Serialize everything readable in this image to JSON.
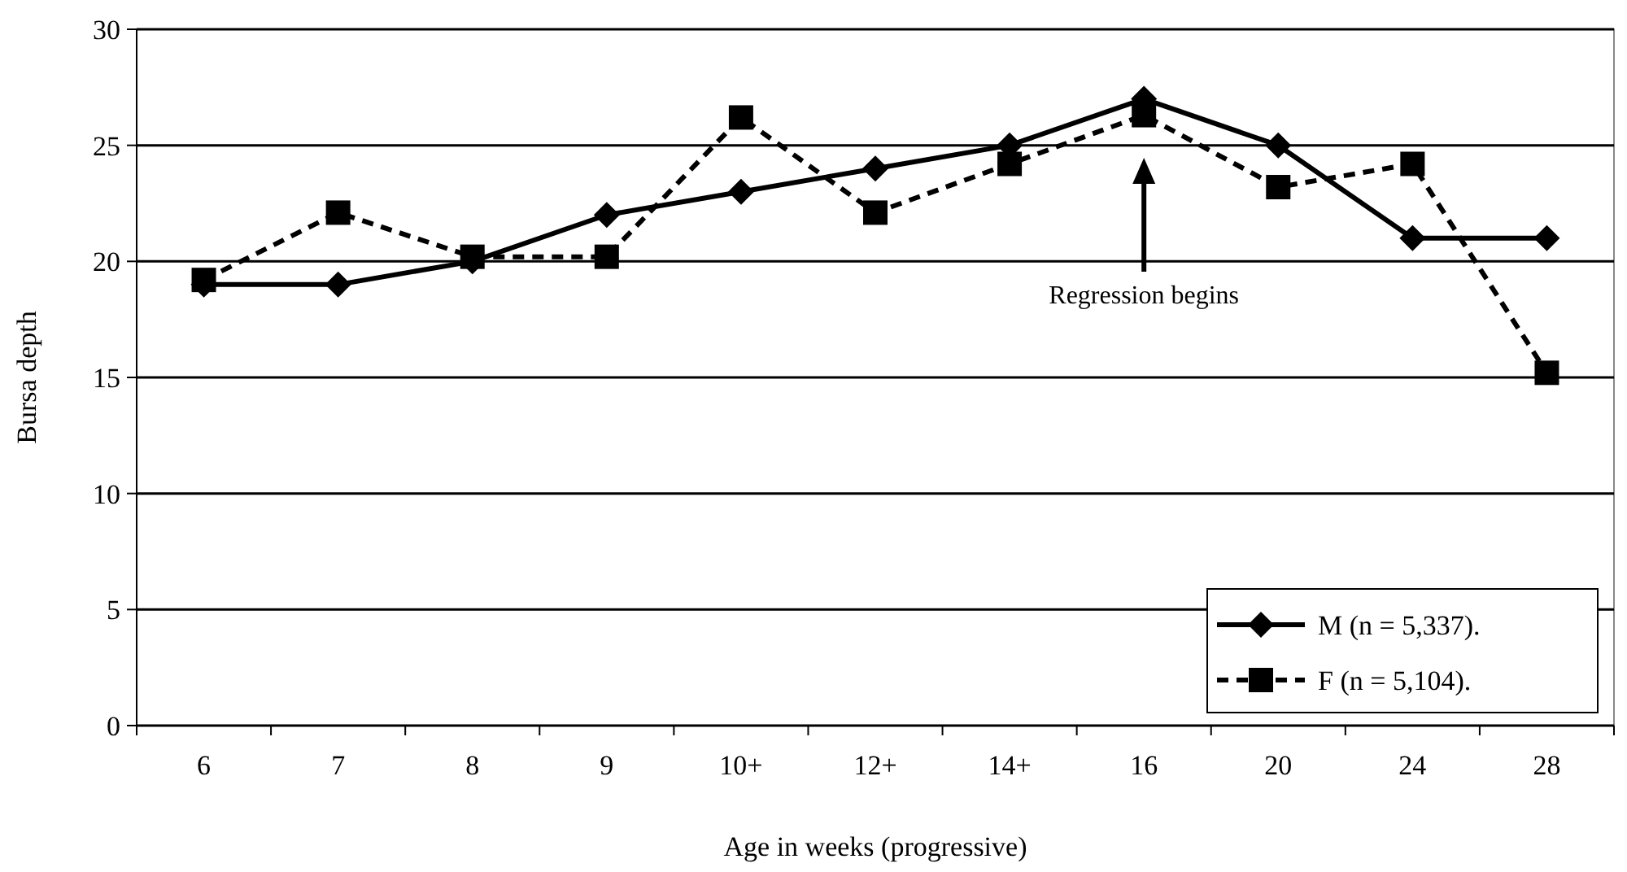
{
  "chart_data": {
    "type": "line",
    "xlabel": "Age in weeks (progressive)",
    "ylabel": "Bursa depth",
    "categories": [
      "6",
      "7",
      "8",
      "9",
      "10+",
      "12+",
      "14+",
      "16",
      "20",
      "24",
      "28"
    ],
    "series": [
      {
        "name": "M (n = 5,337).",
        "color": "#000000",
        "marker": "diamond",
        "line_style": "solid",
        "values": [
          19,
          19,
          20,
          22,
          23,
          24,
          25,
          27,
          25,
          21,
          21
        ]
      },
      {
        "name": "F  (n = 5,104).",
        "color": "#000000",
        "marker": "square",
        "line_style": "dashed",
        "values": [
          19.2,
          22.1,
          20.2,
          20.2,
          26.2,
          22.1,
          24.2,
          26.3,
          23.2,
          24.2,
          15.2
        ]
      }
    ],
    "ylim": [
      0,
      30
    ],
    "yticks": [
      0,
      5,
      10,
      15,
      20,
      25,
      30
    ],
    "grid": "y",
    "legend": "bottom right",
    "annotations": [
      "Regression begins"
    ]
  }
}
